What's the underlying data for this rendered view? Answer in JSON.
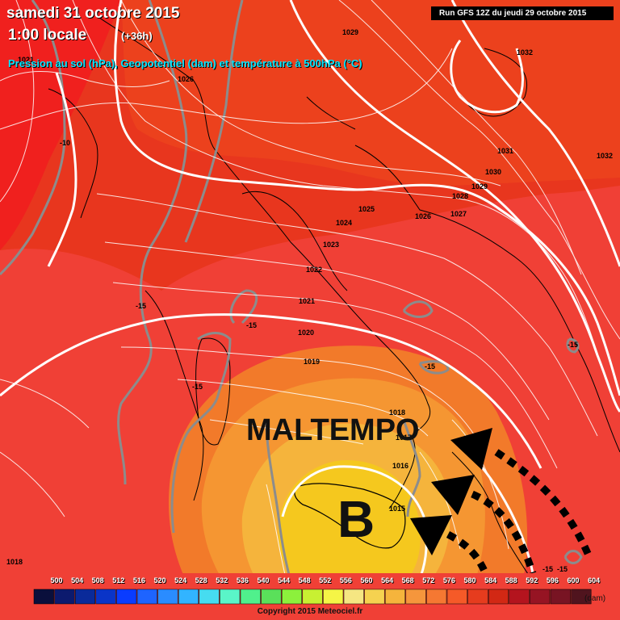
{
  "header": {
    "date": "samedi 31 octobre 2015",
    "time": "1:00 locale",
    "lead": "(+36h)",
    "description": "Pression au sol (hPa), Geopotentiel (dam) et température à 500hPa (°C)",
    "run": "Run GFS 12Z du jeudi 29 octobre 2015"
  },
  "overlay": {
    "note": "MALTEMPO",
    "low_letter": "B"
  },
  "isobars": [
    "1021",
    "1026",
    "1029",
    "1032",
    "1031",
    "1030",
    "1029",
    "1028",
    "1027",
    "1026",
    "1025",
    "1024",
    "1023",
    "1022",
    "1021",
    "1020",
    "1019",
    "1018",
    "1017",
    "1016",
    "1015",
    "1032",
    "1018"
  ],
  "temperature_labels": [
    "-10",
    "-15",
    "-15",
    "-15",
    "-15",
    "-15",
    "-15",
    "-15"
  ],
  "legend": {
    "values": [
      "500",
      "504",
      "508",
      "512",
      "516",
      "520",
      "524",
      "528",
      "532",
      "536",
      "540",
      "544",
      "548",
      "552",
      "556",
      "560",
      "564",
      "568",
      "572",
      "576",
      "580",
      "584",
      "588",
      "592",
      "596",
      "600",
      "604"
    ],
    "colors": [
      "#0a0f3c",
      "#0c1a6e",
      "#0a2a9a",
      "#0a34c8",
      "#0a3cff",
      "#1e64ff",
      "#2a8cff",
      "#32b4ff",
      "#46dcf0",
      "#5af5c8",
      "#50f08c",
      "#5ae05a",
      "#8cf03c",
      "#c8f032",
      "#f5f546",
      "#f5e682",
      "#f5d250",
      "#f5b43c",
      "#f5963c",
      "#f57832",
      "#f55a28",
      "#e63c1e",
      "#d22814",
      "#b4141e",
      "#961423",
      "#781423",
      "#50141e"
    ],
    "unit": "(dam)"
  },
  "copyright": "Copyright 2015 Meteociel.fr",
  "colors": {
    "field_warm": "#e8361e",
    "field_hot": "#f04a3c",
    "field_orange": "#f59632",
    "field_gold": "#f5c81e",
    "isobar": "#ffffff",
    "isotherm": "#8c8c8c"
  }
}
